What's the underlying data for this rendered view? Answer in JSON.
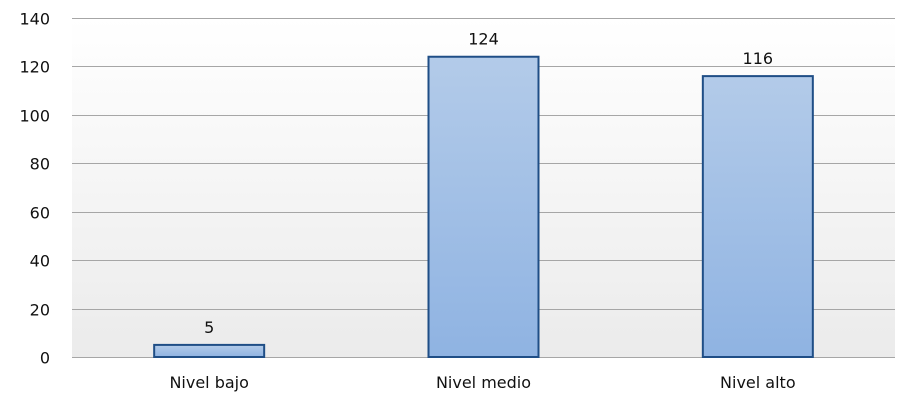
{
  "chart_data": {
    "type": "bar",
    "categories": [
      "Nivel bajo",
      "Nivel medio",
      "Nivel alto"
    ],
    "values": [
      5,
      124,
      116
    ],
    "data_labels": [
      "5",
      "124",
      "116"
    ],
    "title": "",
    "xlabel": "",
    "ylabel": "",
    "ylim": [
      0,
      140
    ],
    "yticks": [
      0,
      20,
      40,
      60,
      80,
      100,
      120,
      140
    ],
    "ytick_labels": [
      "0",
      "20",
      "40",
      "60",
      "80",
      "100",
      "120",
      "140"
    ],
    "grid": true,
    "legend": "none",
    "colors": {
      "bar_fill_top": "#b3cbe9",
      "bar_fill_bottom": "#8fb3e2",
      "bar_stroke": "#1f4e86",
      "gridline": "#a6a6a6",
      "background_top": "#ffffff",
      "background_bottom": "#ebebeb"
    }
  }
}
